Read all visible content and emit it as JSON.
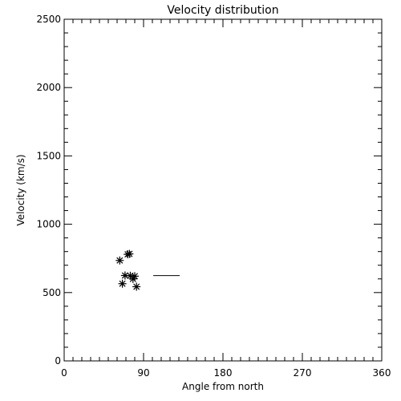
{
  "chart_data": {
    "type": "scatter",
    "title": "Velocity distribution",
    "xlabel": "Angle from north",
    "ylabel": "Velocity (km/s)",
    "xlim": [
      0,
      360
    ],
    "ylim": [
      0,
      2500
    ],
    "x_ticks": [
      0,
      90,
      180,
      270,
      360
    ],
    "y_ticks": [
      0,
      500,
      1000,
      1500,
      2000,
      2500
    ],
    "x_minor_step": 10,
    "y_minor_step": 100,
    "grid": false,
    "colors": {
      "ink": "#000000",
      "background": "#ffffff"
    },
    "series": [
      {
        "marker": "asterisk",
        "points": [
          {
            "x": 63,
            "y": 735
          },
          {
            "x": 66,
            "y": 565
          },
          {
            "x": 69,
            "y": 625
          },
          {
            "x": 72,
            "y": 780
          },
          {
            "x": 74,
            "y": 783
          },
          {
            "x": 75,
            "y": 623
          },
          {
            "x": 78,
            "y": 600
          },
          {
            "x": 80,
            "y": 620
          },
          {
            "x": 82,
            "y": 543
          }
        ]
      }
    ],
    "annotations": [
      {
        "type": "segment",
        "x1": 101,
        "x2": 131,
        "y": 624
      }
    ]
  }
}
